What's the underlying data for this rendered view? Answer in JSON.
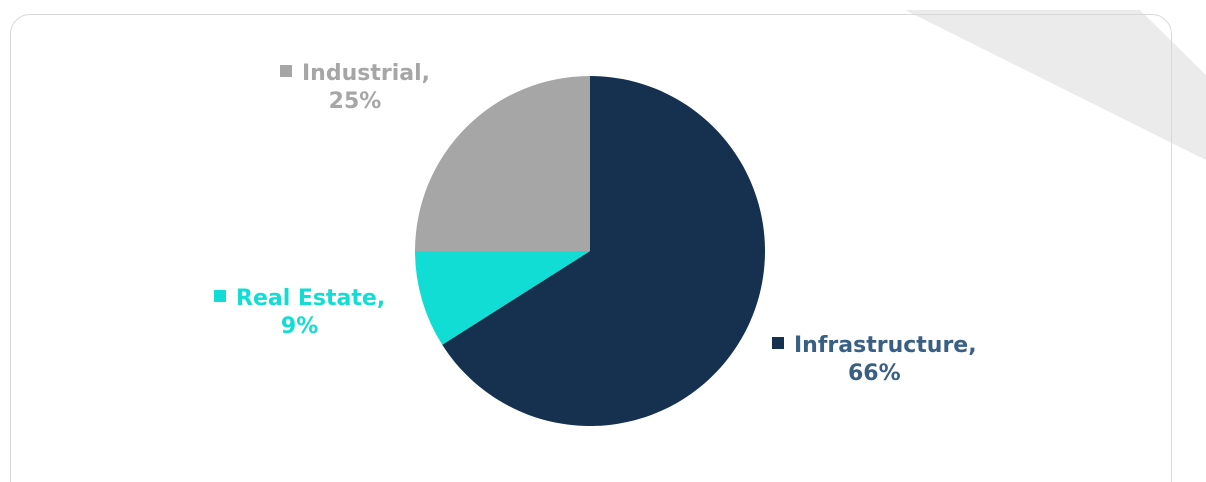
{
  "chart_data": {
    "type": "pie",
    "slices": [
      {
        "name": "Infrastructure",
        "value": 66,
        "color": "#15314f",
        "label_color": "#3a5f85",
        "label_line1": "Infrastructure,",
        "label_line2": "66%"
      },
      {
        "name": "Real Estate",
        "value": 9,
        "color": "#12ddd4",
        "label_color": "#12ddd4",
        "label_line1": "Real Estate,",
        "label_line2": "9%"
      },
      {
        "name": "Industrial",
        "value": 25,
        "color": "#a6a6a6",
        "label_color": "#a6a6a6",
        "label_line1": "Industrial,",
        "label_line2": "25%"
      }
    ],
    "start_angle_deg": 0,
    "direction": "clockwise",
    "legend": "none",
    "data_labels": "outside"
  }
}
